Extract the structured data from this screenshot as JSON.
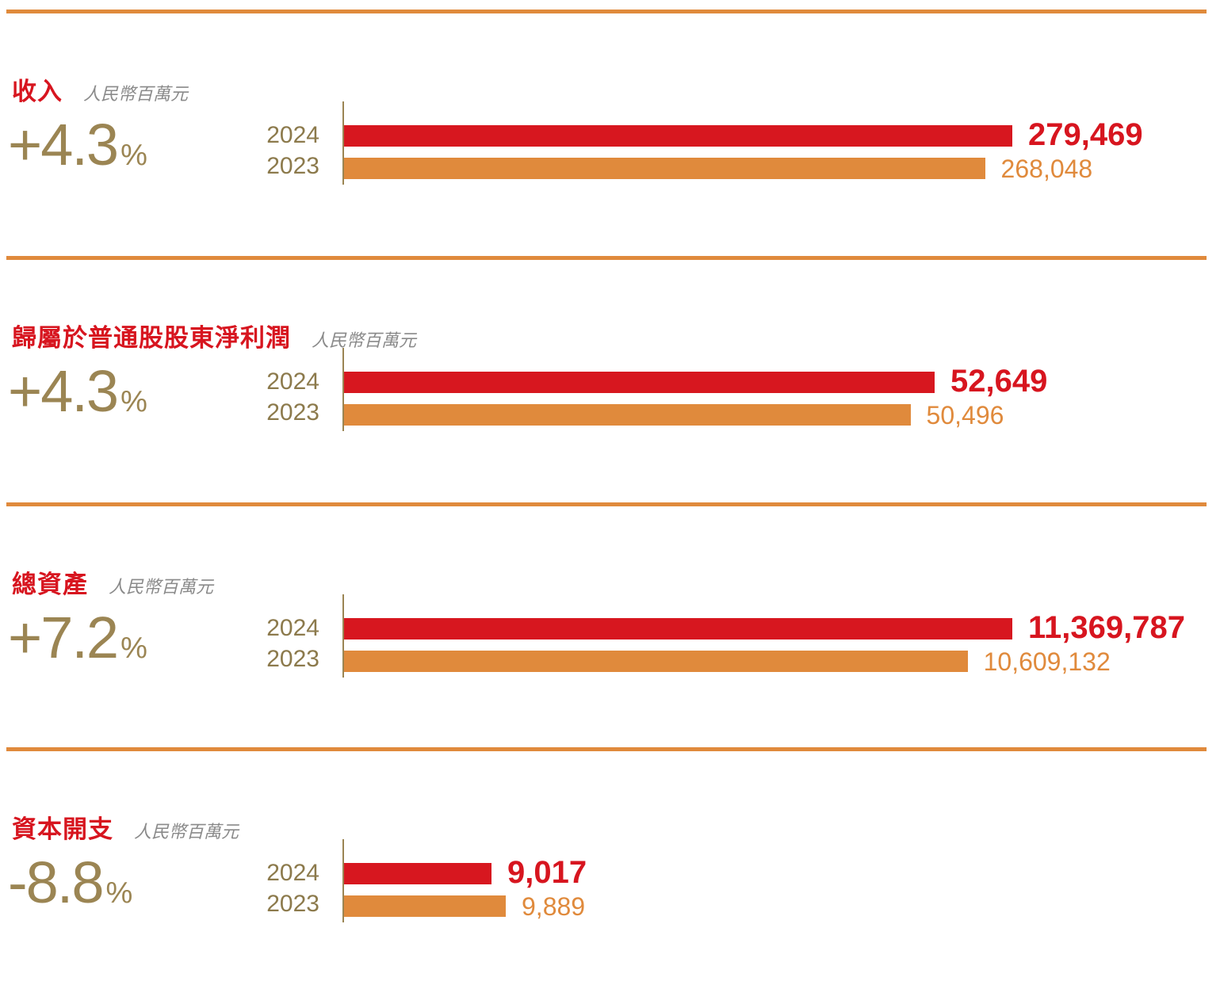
{
  "colors": {
    "rule": "#e08a3c",
    "bar_2024": "#d7171f",
    "bar_2023": "#e08a3c",
    "title": "#d7151f",
    "growth": "#9b8553",
    "unit": "#8a8a8a"
  },
  "chart_data": [
    {
      "type": "bar",
      "orientation": "horizontal",
      "title": "收入",
      "unit": "人民幣百萬元",
      "growth": {
        "value": "+4.3",
        "suffix": "%"
      },
      "categories": [
        "2024",
        "2023"
      ],
      "values": [
        279469,
        268048
      ],
      "labels": [
        "279,469",
        "268,048"
      ]
    },
    {
      "type": "bar",
      "orientation": "horizontal",
      "title": "歸屬於普通股股東淨利潤",
      "unit": "人民幣百萬元",
      "growth": {
        "value": "+4.3",
        "suffix": "%"
      },
      "categories": [
        "2024",
        "2023"
      ],
      "values": [
        52649,
        50496
      ],
      "labels": [
        "52,649",
        "50,496"
      ]
    },
    {
      "type": "bar",
      "orientation": "horizontal",
      "title": "總資產",
      "unit": "人民幣百萬元",
      "growth": {
        "value": "+7.2",
        "suffix": "%"
      },
      "categories": [
        "2024",
        "2023"
      ],
      "values": [
        11369787,
        10609132
      ],
      "labels": [
        "11,369,787",
        "10,609,132"
      ]
    },
    {
      "type": "bar",
      "orientation": "horizontal",
      "title": "資本開支",
      "unit": "人民幣百萬元",
      "growth": {
        "value": "-8.8",
        "suffix": "%"
      },
      "categories": [
        "2024",
        "2023"
      ],
      "values": [
        9017,
        9889
      ],
      "labels": [
        "9,017",
        "9,889"
      ]
    }
  ]
}
